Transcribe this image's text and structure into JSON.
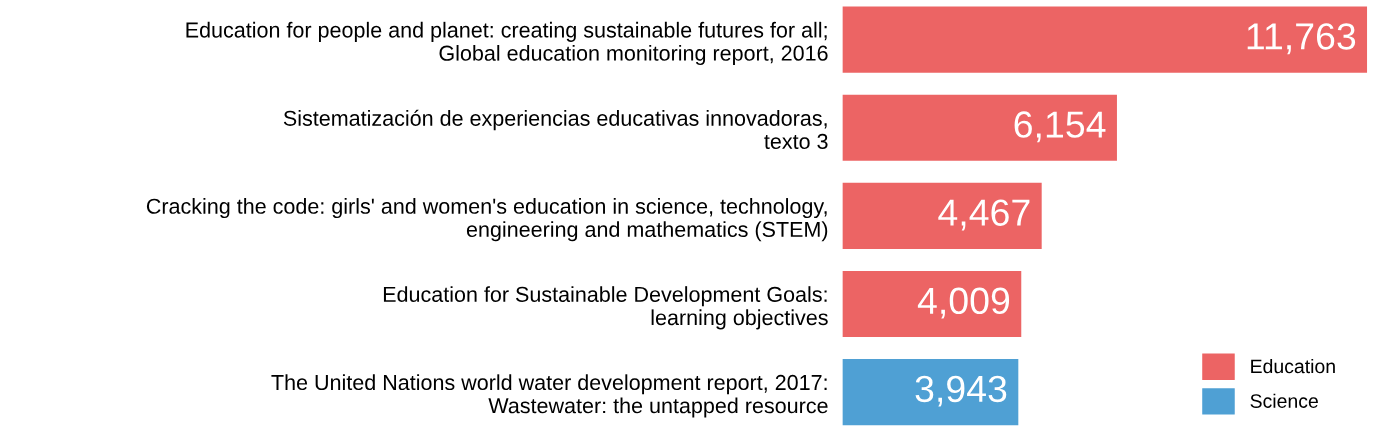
{
  "chart_data": {
    "type": "bar",
    "orientation": "horizontal",
    "tick_labels": "y",
    "grid": false,
    "legend": "bottom right",
    "categories": [
      "Education for people and planet: creating sustainable futures for all;\nGlobal education monitoring report, 2016",
      "Sistematización de experiencias educativas innovadoras,\ntexto 3",
      "Cracking the code: girls' and women's education in science, technology,\nengineering and mathematics (STEM)",
      "Education for Sustainable Development Goals:\nlearning objectives",
      "The United Nations world water development report, 2017:\nWastewater: the untapped resource"
    ],
    "series": [
      {
        "name": "Education",
        "color": "#ec6464",
        "values": [
          11763,
          6154,
          4467,
          4009,
          null
        ],
        "value_labels": [
          "11,763",
          "6,154",
          "4,467",
          "4,009",
          null
        ]
      },
      {
        "name": "Science",
        "color": "#4fa0d4",
        "values": [
          null,
          null,
          null,
          null,
          3943
        ],
        "value_labels": [
          null,
          null,
          null,
          null,
          "3,943"
        ]
      }
    ]
  }
}
